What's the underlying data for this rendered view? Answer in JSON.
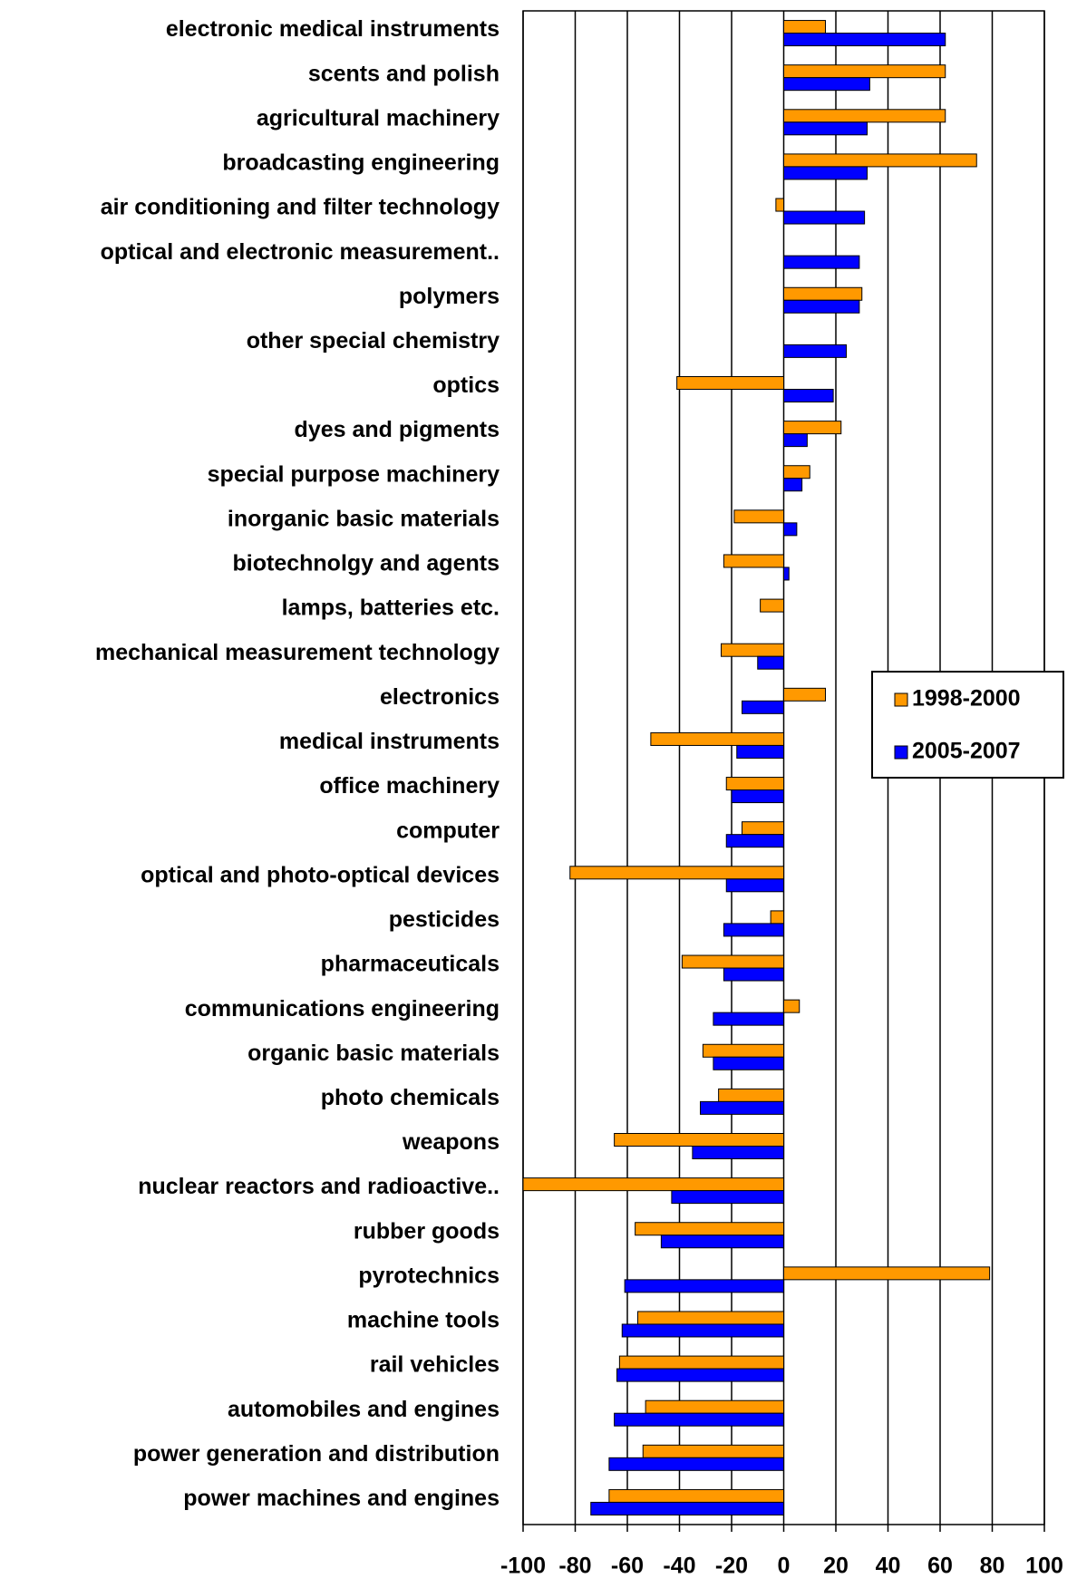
{
  "chart_data": {
    "type": "barh",
    "categories": [
      "electronic medical instruments",
      "scents and polish",
      "agricultural machinery",
      "broadcasting engineering",
      "air conditioning and filter technology",
      "optical and electronic measurement..",
      "polymers",
      "other special chemistry",
      "optics",
      "dyes and pigments",
      "special purpose machinery",
      "inorganic basic materials",
      "biotechnolgy and agents",
      "lamps, batteries etc.",
      "mechanical measurement technology",
      "electronics",
      "medical instruments",
      "office machinery",
      "computer",
      "optical and photo-optical devices",
      "pesticides",
      "pharmaceuticals",
      "communications engineering",
      "organic basic materials",
      "photo chemicals",
      "weapons",
      "nuclear reactors and radioactive..",
      "rubber goods",
      "pyrotechnics",
      "machine tools",
      "rail vehicles",
      "automobiles and engines",
      "power generation and distribution",
      "power machines and engines"
    ],
    "series": [
      {
        "name": "1998-2000",
        "color": "#ff9900",
        "values": [
          16,
          62,
          62,
          74,
          -3,
          0,
          30,
          0,
          -41,
          22,
          10,
          -19,
          -23,
          -9,
          -24,
          16,
          -51,
          -22,
          -16,
          -82,
          -5,
          -39,
          6,
          -31,
          -25,
          -65,
          -100,
          -57,
          79,
          -56,
          -63,
          -53,
          -54,
          -67
        ]
      },
      {
        "name": "2005-2007",
        "color": "#0000ff",
        "values": [
          62,
          33,
          32,
          32,
          31,
          29,
          29,
          24,
          19,
          9,
          7,
          5,
          2,
          0,
          -10,
          -16,
          -18,
          -20,
          -22,
          -22,
          -23,
          -23,
          -27,
          -27,
          -32,
          -35,
          -43,
          -47,
          -61,
          -62,
          -64,
          -65,
          -67,
          -74
        ]
      }
    ],
    "xlim": [
      -100,
      100
    ],
    "xticks": [
      -100,
      -80,
      -60,
      -40,
      -20,
      0,
      20,
      40,
      60,
      80,
      100
    ],
    "grid": true,
    "legend": "right"
  }
}
